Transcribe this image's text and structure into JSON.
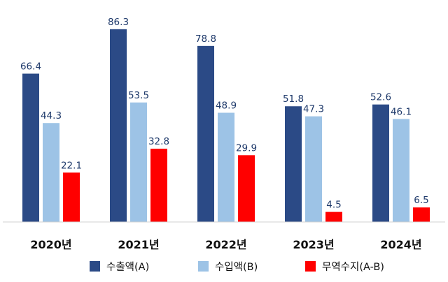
{
  "chart_data": {
    "type": "bar",
    "categories": [
      "2020년",
      "2021년",
      "2022년",
      "2023년",
      "2024년"
    ],
    "series": [
      {
        "name": "수출액(A)",
        "values": [
          66.4,
          86.3,
          78.8,
          51.8,
          52.6
        ],
        "color": "#2b4a86"
      },
      {
        "name": "수입액(B)",
        "values": [
          44.3,
          53.5,
          48.9,
          47.3,
          46.1
        ],
        "color": "#9dc3e6"
      },
      {
        "name": "무역수지(A-B)",
        "values": [
          22.1,
          32.8,
          29.9,
          4.5,
          6.5
        ],
        "color": "#ff0000"
      }
    ],
    "value_labels": [
      [
        "66.4",
        "86.3",
        "78.8",
        "51.8",
        "52.6"
      ],
      [
        "44.3",
        "53.5",
        "48.9",
        "47.3",
        "46.1"
      ],
      [
        "22.1",
        "32.8",
        "29.9",
        "4.5",
        "6.5"
      ]
    ],
    "ylim": [
      0,
      90
    ],
    "grid": false,
    "legend_position": "bottom",
    "axis_color": "#d0d0d0",
    "label_color": "#1f3a6b"
  }
}
